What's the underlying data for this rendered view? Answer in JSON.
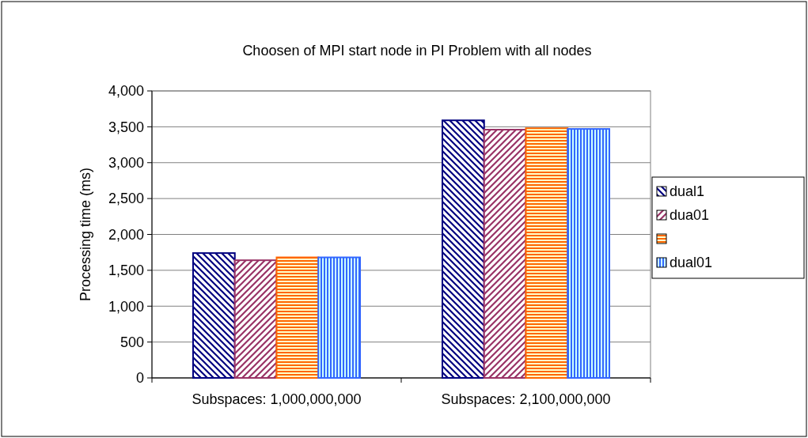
{
  "chart_data": {
    "type": "bar",
    "title": "Choosen of MPI start node in PI Problem with all nodes",
    "ylabel": "Processing time (ms)",
    "categories": [
      "Subspaces: 1,000,000,000",
      "Subspaces: 2,100,000,000"
    ],
    "series": [
      {
        "name": "dual1",
        "color": "#000080",
        "values": [
          1740,
          3590
        ]
      },
      {
        "name": "dua01",
        "color": "#993366",
        "values": [
          1640,
          3460
        ]
      },
      {
        "color": "#ff6600",
        "values": [
          1680,
          3480
        ]
      },
      {
        "name": "dual01",
        "color": "#3366ff",
        "values": [
          1680,
          3470
        ]
      }
    ],
    "ylim": [
      0,
      4000
    ],
    "yticks": [
      {
        "value": 0,
        "label": "0"
      },
      {
        "value": 500,
        "label": "500"
      },
      {
        "value": 1000,
        "label": "1,000"
      },
      {
        "value": 1500,
        "label": "1,500"
      },
      {
        "value": 2000,
        "label": "2,000"
      },
      {
        "value": 2500,
        "label": "2,500"
      },
      {
        "value": 3000,
        "label": "3,000"
      },
      {
        "value": 3500,
        "label": "3,500"
      },
      {
        "value": 4000,
        "label": "4,000"
      }
    ],
    "grid": "y",
    "legend": "right"
  }
}
